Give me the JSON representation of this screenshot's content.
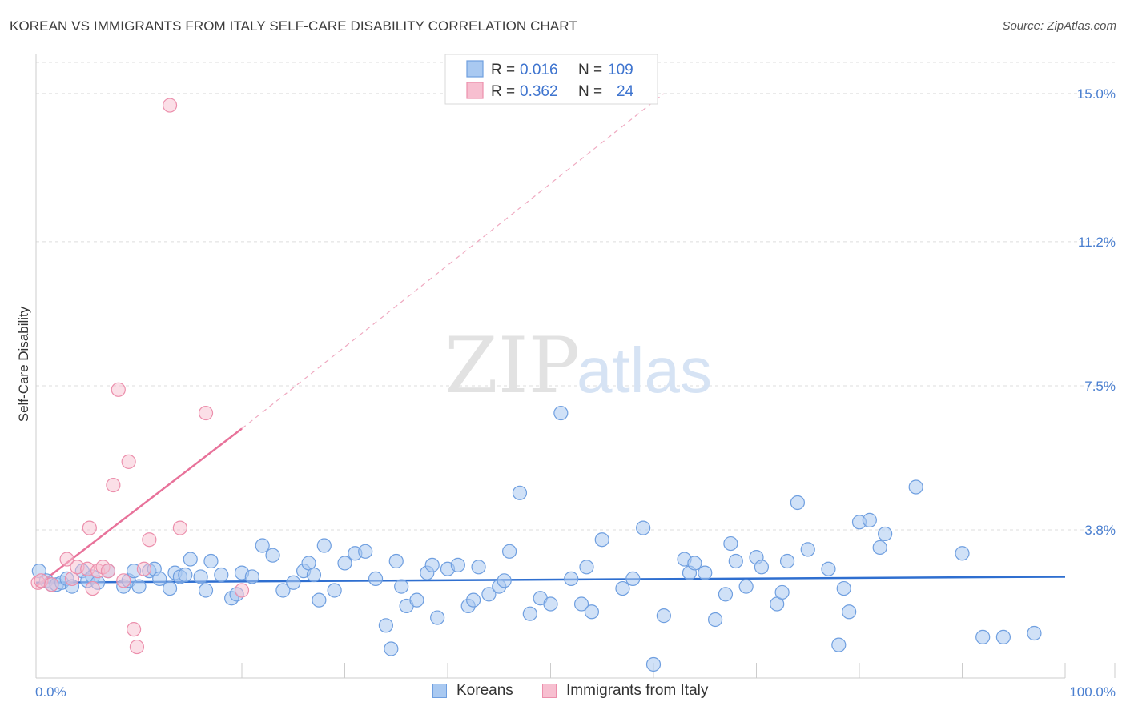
{
  "header": {
    "title": "KOREAN VS IMMIGRANTS FROM ITALY SELF-CARE DISABILITY CORRELATION CHART",
    "source": "Source: ZipAtlas.com"
  },
  "watermark": {
    "zip": "ZIP",
    "atlas": "atlas"
  },
  "colors": {
    "korean_fill": "#a9c9f1",
    "korean_stroke": "#6f9fe0",
    "korean_line": "#2f6fd0",
    "italy_fill": "#f7bfd0",
    "italy_stroke": "#ec8fac",
    "italy_line": "#e8729a",
    "grid": "#dddddd",
    "tick_label": "#4a7fd0"
  },
  "legend": {
    "rows": [
      {
        "r_label": "R = ",
        "r_value": "0.016",
        "n_label": "N = ",
        "n_value": "109"
      },
      {
        "r_label": "R = ",
        "r_value": "0.362",
        "n_label": "N = ",
        "n_value": "24"
      }
    ]
  },
  "bottom_legend": {
    "koreans": "Koreans",
    "italy": "Immigrants from Italy"
  },
  "chart_data": {
    "type": "scatter",
    "xlabel": "",
    "ylabel": "Self-Care Disability",
    "xlim": [
      0,
      100
    ],
    "ylim": [
      0,
      15.8
    ],
    "x_tick_labels": [
      "0.0%",
      "100.0%"
    ],
    "y_ticks": [
      3.8,
      7.5,
      11.2,
      15.0
    ],
    "y_tick_labels": [
      "3.8%",
      "7.5%",
      "11.2%",
      "15.0%"
    ],
    "grid": "horizontal dashed",
    "legend_position": "top-center",
    "series": [
      {
        "name": "Koreans",
        "trend": {
          "x": [
            0,
            100
          ],
          "y": [
            2.45,
            2.6
          ]
        },
        "points": [
          [
            0.3,
            2.75
          ],
          [
            1,
            2.5
          ],
          [
            1.5,
            2.4
          ],
          [
            2,
            2.4
          ],
          [
            2.5,
            2.45
          ],
          [
            3,
            2.55
          ],
          [
            3.5,
            2.35
          ],
          [
            4.5,
            2.75
          ],
          [
            5,
            2.5
          ],
          [
            5.5,
            2.6
          ],
          [
            6,
            2.45
          ],
          [
            7,
            2.75
          ],
          [
            8.5,
            2.35
          ],
          [
            9,
            2.5
          ],
          [
            9.5,
            2.75
          ],
          [
            10,
            2.35
          ],
          [
            11,
            2.75
          ],
          [
            11.5,
            2.8
          ],
          [
            12,
            2.55
          ],
          [
            13,
            2.3
          ],
          [
            13.5,
            2.7
          ],
          [
            14,
            2.6
          ],
          [
            14.5,
            2.65
          ],
          [
            15,
            3.05
          ],
          [
            16,
            2.6
          ],
          [
            16.5,
            2.25
          ],
          [
            17,
            3.0
          ],
          [
            18,
            2.65
          ],
          [
            19,
            2.05
          ],
          [
            19.5,
            2.15
          ],
          [
            20,
            2.7
          ],
          [
            21,
            2.6
          ],
          [
            22,
            3.4
          ],
          [
            23,
            3.15
          ],
          [
            24,
            2.25
          ],
          [
            25,
            2.45
          ],
          [
            26,
            2.75
          ],
          [
            26.5,
            2.95
          ],
          [
            27,
            2.65
          ],
          [
            27.5,
            2.0
          ],
          [
            28,
            3.4
          ],
          [
            29,
            2.25
          ],
          [
            30,
            2.95
          ],
          [
            31,
            3.2
          ],
          [
            32,
            3.25
          ],
          [
            33,
            2.55
          ],
          [
            34,
            1.35
          ],
          [
            34.5,
            0.75
          ],
          [
            35,
            3.0
          ],
          [
            35.5,
            2.35
          ],
          [
            36,
            1.85
          ],
          [
            37,
            2.0
          ],
          [
            38,
            2.7
          ],
          [
            38.5,
            2.9
          ],
          [
            39,
            1.55
          ],
          [
            40,
            2.8
          ],
          [
            41,
            2.9
          ],
          [
            42,
            1.85
          ],
          [
            42.5,
            2.0
          ],
          [
            43,
            2.85
          ],
          [
            44,
            2.15
          ],
          [
            45,
            2.35
          ],
          [
            45.5,
            2.5
          ],
          [
            46,
            3.25
          ],
          [
            47,
            4.75
          ],
          [
            48,
            1.65
          ],
          [
            49,
            2.05
          ],
          [
            50,
            1.9
          ],
          [
            51,
            6.8
          ],
          [
            52,
            2.55
          ],
          [
            53,
            1.9
          ],
          [
            53.5,
            2.85
          ],
          [
            54,
            1.7
          ],
          [
            55,
            3.55
          ],
          [
            57,
            2.3
          ],
          [
            58,
            2.55
          ],
          [
            59,
            3.85
          ],
          [
            60,
            0.35
          ],
          [
            61,
            1.6
          ],
          [
            63,
            3.05
          ],
          [
            63.5,
            2.7
          ],
          [
            64,
            2.95
          ],
          [
            65,
            2.7
          ],
          [
            66,
            1.5
          ],
          [
            67,
            2.15
          ],
          [
            67.5,
            3.45
          ],
          [
            68,
            3.0
          ],
          [
            69,
            2.35
          ],
          [
            70,
            3.1
          ],
          [
            70.5,
            2.85
          ],
          [
            72,
            1.9
          ],
          [
            72.5,
            2.2
          ],
          [
            73,
            3.0
          ],
          [
            74,
            4.5
          ],
          [
            75,
            3.3
          ],
          [
            77,
            2.8
          ],
          [
            78,
            0.85
          ],
          [
            78.5,
            2.3
          ],
          [
            79,
            1.7
          ],
          [
            80,
            4.0
          ],
          [
            81,
            4.05
          ],
          [
            82,
            3.35
          ],
          [
            82.5,
            3.7
          ],
          [
            85.5,
            4.9
          ],
          [
            90,
            3.2
          ],
          [
            92,
            1.05
          ],
          [
            94,
            1.05
          ],
          [
            97,
            1.15
          ]
        ]
      },
      {
        "name": "Immigrants from Italy",
        "trend": {
          "x": [
            0,
            20
          ],
          "y": [
            2.35,
            6.4
          ]
        },
        "trend_extension": {
          "x": [
            20,
            61
          ],
          "y": [
            6.4,
            15.0
          ]
        },
        "points": [
          [
            0.2,
            2.45
          ],
          [
            0.5,
            2.5
          ],
          [
            1.5,
            2.4
          ],
          [
            3,
            3.05
          ],
          [
            3.5,
            2.55
          ],
          [
            4,
            2.85
          ],
          [
            5,
            2.8
          ],
          [
            5.5,
            2.3
          ],
          [
            5.2,
            3.85
          ],
          [
            6,
            2.75
          ],
          [
            6.5,
            2.85
          ],
          [
            7,
            2.75
          ],
          [
            7.5,
            4.95
          ],
          [
            8,
            7.4
          ],
          [
            8.5,
            2.5
          ],
          [
            9,
            5.55
          ],
          [
            9.5,
            1.25
          ],
          [
            9.8,
            0.8
          ],
          [
            10.5,
            2.8
          ],
          [
            11,
            3.55
          ],
          [
            13,
            14.7
          ],
          [
            14,
            3.85
          ],
          [
            16.5,
            6.8
          ],
          [
            20,
            2.25
          ]
        ]
      }
    ]
  }
}
